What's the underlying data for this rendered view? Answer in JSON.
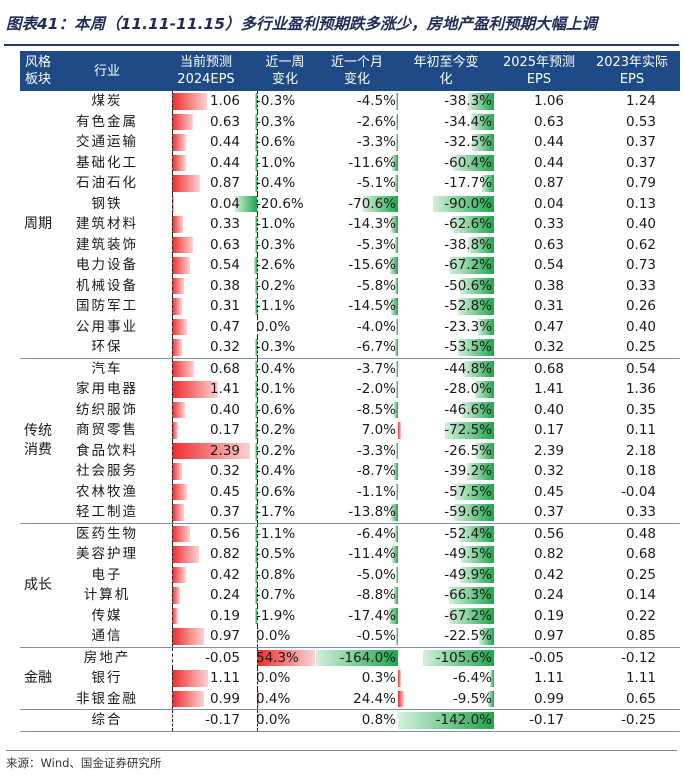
{
  "title": "图表41：本周（11.11-11.15）多行业盈利预期跌多涨少，房地产盈利预期大幅上调",
  "headers": {
    "style": [
      "风格",
      "板块"
    ],
    "industry": "行业",
    "eps2024": [
      "当前预测",
      "2024EPS"
    ],
    "wk": [
      "近一周",
      "变化"
    ],
    "mo": [
      "近一个月",
      "变化"
    ],
    "ytd": [
      "年初至今变",
      "化"
    ],
    "eps2025": [
      "2025年预测",
      "EPS"
    ],
    "eps2023": [
      "2023年实际",
      "EPS"
    ]
  },
  "colors": {
    "header_bg": "#1e4b86",
    "bar_red": "#ef2b2b",
    "bar_green": "#1ea84a"
  },
  "groups": [
    {
      "label": [
        "周期"
      ],
      "rows": [
        {
          "industry": "煤炭",
          "eps2024": "1.06",
          "wk": "-0.3%",
          "mo": "-4.5%",
          "ytd": "-38.3%",
          "eps2025": "1.06",
          "eps2023": "1.24"
        },
        {
          "industry": "有色金属",
          "eps2024": "0.63",
          "wk": "-0.3%",
          "mo": "-2.6%",
          "ytd": "-34.4%",
          "eps2025": "0.63",
          "eps2023": "0.53"
        },
        {
          "industry": "交通运输",
          "eps2024": "0.44",
          "wk": "-0.6%",
          "mo": "-3.3%",
          "ytd": "-32.5%",
          "eps2025": "0.44",
          "eps2023": "0.37"
        },
        {
          "industry": "基础化工",
          "eps2024": "0.44",
          "wk": "-1.0%",
          "mo": "-11.6%",
          "ytd": "-60.4%",
          "eps2025": "0.44",
          "eps2023": "0.37"
        },
        {
          "industry": "石油石化",
          "eps2024": "0.87",
          "wk": "-0.4%",
          "mo": "-5.1%",
          "ytd": "-17.7%",
          "eps2025": "0.87",
          "eps2023": "0.79"
        },
        {
          "industry": "钢铁",
          "eps2024": "0.04",
          "wk": "-20.6%",
          "mo": "-70.6%",
          "ytd": "-90.0%",
          "eps2025": "0.04",
          "eps2023": "0.13"
        },
        {
          "industry": "建筑材料",
          "eps2024": "0.33",
          "wk": "-1.0%",
          "mo": "-14.3%",
          "ytd": "-62.6%",
          "eps2025": "0.33",
          "eps2023": "0.40"
        },
        {
          "industry": "建筑装饰",
          "eps2024": "0.63",
          "wk": "-0.3%",
          "mo": "-5.3%",
          "ytd": "-38.8%",
          "eps2025": "0.63",
          "eps2023": "0.62"
        },
        {
          "industry": "电力设备",
          "eps2024": "0.54",
          "wk": "-2.6%",
          "mo": "-15.6%",
          "ytd": "-67.2%",
          "eps2025": "0.54",
          "eps2023": "0.73"
        },
        {
          "industry": "机械设备",
          "eps2024": "0.38",
          "wk": "-0.2%",
          "mo": "-5.8%",
          "ytd": "-50.6%",
          "eps2025": "0.38",
          "eps2023": "0.33"
        },
        {
          "industry": "国防军工",
          "eps2024": "0.31",
          "wk": "-1.1%",
          "mo": "-14.5%",
          "ytd": "-52.8%",
          "eps2025": "0.31",
          "eps2023": "0.26"
        },
        {
          "industry": "公用事业",
          "eps2024": "0.47",
          "wk": "0.0%",
          "mo": "-4.0%",
          "ytd": "-23.3%",
          "eps2025": "0.47",
          "eps2023": "0.40"
        },
        {
          "industry": "环保",
          "eps2024": "0.32",
          "wk": "-0.3%",
          "mo": "-6.7%",
          "ytd": "-53.5%",
          "eps2025": "0.32",
          "eps2023": "0.25"
        }
      ]
    },
    {
      "label": [
        "传统",
        "消费"
      ],
      "rows": [
        {
          "industry": "汽车",
          "eps2024": "0.68",
          "wk": "-0.4%",
          "mo": "-3.7%",
          "ytd": "-44.8%",
          "eps2025": "0.68",
          "eps2023": "0.54"
        },
        {
          "industry": "家用电器",
          "eps2024": "1.41",
          "wk": "-0.1%",
          "mo": "-2.0%",
          "ytd": "-28.0%",
          "eps2025": "1.41",
          "eps2023": "1.36"
        },
        {
          "industry": "纺织服饰",
          "eps2024": "0.40",
          "wk": "-0.6%",
          "mo": "-8.5%",
          "ytd": "-46.6%",
          "eps2025": "0.40",
          "eps2023": "0.35"
        },
        {
          "industry": "商贸零售",
          "eps2024": "0.17",
          "wk": "-0.2%",
          "mo": "7.0%",
          "ytd": "-72.5%",
          "eps2025": "0.17",
          "eps2023": "0.11"
        },
        {
          "industry": "食品饮料",
          "eps2024": "2.39",
          "wk": "-0.2%",
          "mo": "-3.3%",
          "ytd": "-26.5%",
          "eps2025": "2.39",
          "eps2023": "2.18"
        },
        {
          "industry": "社会服务",
          "eps2024": "0.32",
          "wk": "-0.4%",
          "mo": "-8.7%",
          "ytd": "-39.2%",
          "eps2025": "0.32",
          "eps2023": "0.18"
        },
        {
          "industry": "农林牧渔",
          "eps2024": "0.45",
          "wk": "-0.6%",
          "mo": "-1.1%",
          "ytd": "-57.5%",
          "eps2025": "0.45",
          "eps2023": "-0.04"
        },
        {
          "industry": "轻工制造",
          "eps2024": "0.37",
          "wk": "-1.7%",
          "mo": "-13.8%",
          "ytd": "-59.6%",
          "eps2025": "0.37",
          "eps2023": "0.33"
        }
      ]
    },
    {
      "label": [
        "成长"
      ],
      "rows": [
        {
          "industry": "医药生物",
          "eps2024": "0.56",
          "wk": "-1.1%",
          "mo": "-6.4%",
          "ytd": "-52.4%",
          "eps2025": "0.56",
          "eps2023": "0.48"
        },
        {
          "industry": "美容护理",
          "eps2024": "0.82",
          "wk": "-0.5%",
          "mo": "-11.4%",
          "ytd": "-49.5%",
          "eps2025": "0.82",
          "eps2023": "0.68"
        },
        {
          "industry": "电子",
          "eps2024": "0.42",
          "wk": "-0.8%",
          "mo": "-5.0%",
          "ytd": "-49.9%",
          "eps2025": "0.42",
          "eps2023": "0.25"
        },
        {
          "industry": "计算机",
          "eps2024": "0.24",
          "wk": "-0.7%",
          "mo": "-8.8%",
          "ytd": "-66.3%",
          "eps2025": "0.24",
          "eps2023": "0.14"
        },
        {
          "industry": "传媒",
          "eps2024": "0.19",
          "wk": "-1.9%",
          "mo": "-17.4%",
          "ytd": "-67.2%",
          "eps2025": "0.19",
          "eps2023": "0.22"
        },
        {
          "industry": "通信",
          "eps2024": "0.97",
          "wk": "0.0%",
          "mo": "-0.5%",
          "ytd": "-22.5%",
          "eps2025": "0.97",
          "eps2023": "0.85"
        }
      ]
    },
    {
      "label": [
        "金融"
      ],
      "rows": [
        {
          "industry": "房地产",
          "eps2024": "-0.05",
          "wk": "54.3%",
          "mo": "-164.0%",
          "ytd": "-105.6%",
          "eps2025": "-0.05",
          "eps2023": "-0.12"
        },
        {
          "industry": "银行",
          "eps2024": "1.11",
          "wk": "0.0%",
          "mo": "0.3%",
          "ytd": "-6.4%",
          "eps2025": "1.11",
          "eps2023": "1.11"
        },
        {
          "industry": "非银金融",
          "eps2024": "0.99",
          "wk": "0.4%",
          "mo": "24.4%",
          "ytd": "-9.5%",
          "eps2025": "0.99",
          "eps2023": "0.65"
        }
      ]
    },
    {
      "label": [
        ""
      ],
      "rows": [
        {
          "industry": "综合",
          "eps2024": "-0.17",
          "wk": "0.0%",
          "mo": "0.8%",
          "ytd": "-142.0%",
          "eps2025": "-0.17",
          "eps2023": "-0.25"
        }
      ]
    }
  ],
  "footer": "来源：Wind、国金证券研究所"
}
